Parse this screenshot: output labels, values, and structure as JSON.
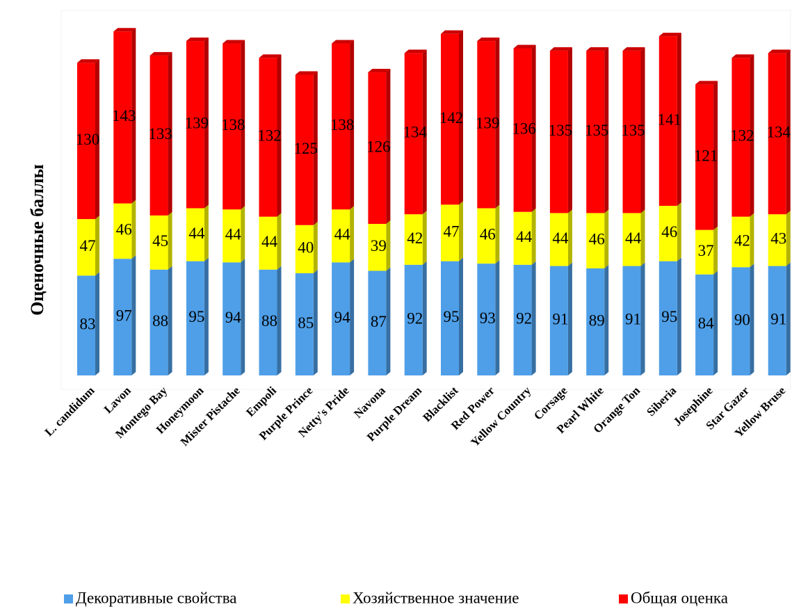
{
  "chart_data": {
    "type": "stacked_bar_3d",
    "y_label": "Оценочные баллы",
    "categories": [
      "L. candidum",
      "Lavon",
      "Montego Bay",
      "Honeymoon",
      "Mister Pistache",
      "Empoli",
      "Purple Prince",
      "Netty's Pride",
      "Navona",
      "Purple Dream",
      "Blacklist",
      "Red Power",
      "Yellow Country",
      "Corsage",
      "Pearl White",
      "Orange Ton",
      "Siberia",
      "Josephine",
      "Star Gazer",
      "Yellow Bruse"
    ],
    "series": [
      {
        "name": "Декоративные свойства",
        "color": "#4f9fe8",
        "values": [
          83,
          97,
          88,
          95,
          94,
          88,
          85,
          94,
          87,
          92,
          95,
          93,
          92,
          91,
          89,
          91,
          95,
          84,
          90,
          91
        ]
      },
      {
        "name": "Хозяйственное значение",
        "color": "#ffff00",
        "values": [
          47,
          46,
          45,
          44,
          44,
          44,
          40,
          44,
          39,
          42,
          47,
          46,
          44,
          44,
          46,
          44,
          46,
          37,
          42,
          43
        ]
      },
      {
        "name": "Общая оценка",
        "color": "#ff0000",
        "values": [
          130,
          143,
          133,
          139,
          138,
          132,
          125,
          138,
          126,
          134,
          142,
          139,
          136,
          135,
          135,
          135,
          141,
          121,
          132,
          134
        ]
      }
    ],
    "ylim": [
      0,
      300
    ]
  }
}
